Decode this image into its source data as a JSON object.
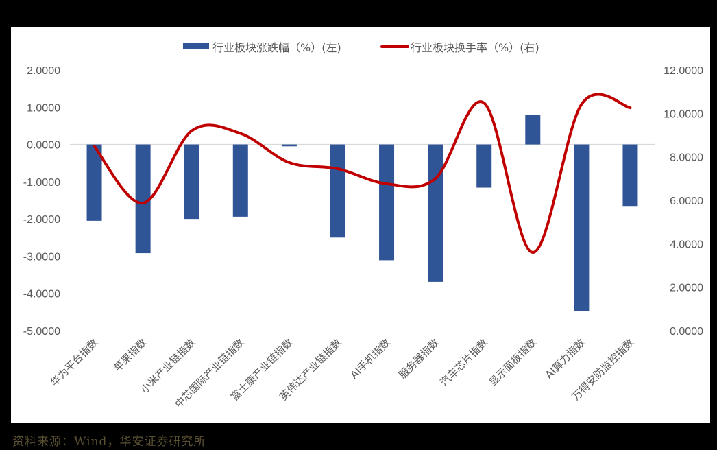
{
  "chart_data": {
    "type": "bar+line",
    "title": "",
    "categories": [
      "华为平台指数",
      "苹果指数",
      "小米产业链指数",
      "中芯国际产业链指数",
      "富士康产业链指数",
      "英伟达产业链指数",
      "AI手机指数",
      "服务器指数",
      "汽车芯片指数",
      "显示面板指数",
      "AI算力指数",
      "万得安防监控指数"
    ],
    "series": [
      {
        "name": "行业板块涨跌幅（%）(左)",
        "type": "bar",
        "axis": "left",
        "color": "#2F5597",
        "values": [
          -2.05,
          -2.92,
          -2.0,
          -1.94,
          -0.05,
          -2.5,
          -3.11,
          -3.69,
          -1.16,
          0.8,
          -4.47,
          -1.67
        ]
      },
      {
        "name": "行业板块换手率（%）(右)",
        "type": "line",
        "smooth": true,
        "axis": "right",
        "color": "#C00000",
        "values": [
          8.49,
          5.87,
          9.2,
          9.08,
          7.74,
          7.45,
          6.76,
          7.0,
          10.48,
          3.6,
          10.42,
          10.26
        ]
      }
    ],
    "left_axis": {
      "ylim": [
        -5,
        2
      ],
      "ticks": [
        "2.0000",
        "1.0000",
        "0.0000",
        "-1.0000",
        "-2.0000",
        "-3.0000",
        "-4.0000",
        "-5.0000"
      ],
      "tick_values": [
        2,
        1,
        0,
        -1,
        -2,
        -3,
        -4,
        -5
      ]
    },
    "right_axis": {
      "ylim": [
        0,
        12
      ],
      "ticks": [
        "12.0000",
        "10.0000",
        "8.0000",
        "6.0000",
        "4.0000",
        "2.0000",
        "0.0000"
      ],
      "tick_values": [
        12,
        10,
        8,
        6,
        4,
        2,
        0
      ]
    },
    "xlabel": "",
    "ylabel_left": "",
    "ylabel_right": "",
    "grid": false,
    "legend_position": "top"
  },
  "legend": {
    "bar_label": "行业板块涨跌幅（%）(左)",
    "line_label": "行业板块换手率（%）(右)"
  },
  "footer": {
    "source": "资料来源：Wind，华安证券研究所"
  },
  "colors": {
    "bar": "#2F5597",
    "line": "#C00000",
    "zero_line": "#D9D9D9",
    "axis_text": "#595959",
    "source_text": "#5b5232"
  }
}
